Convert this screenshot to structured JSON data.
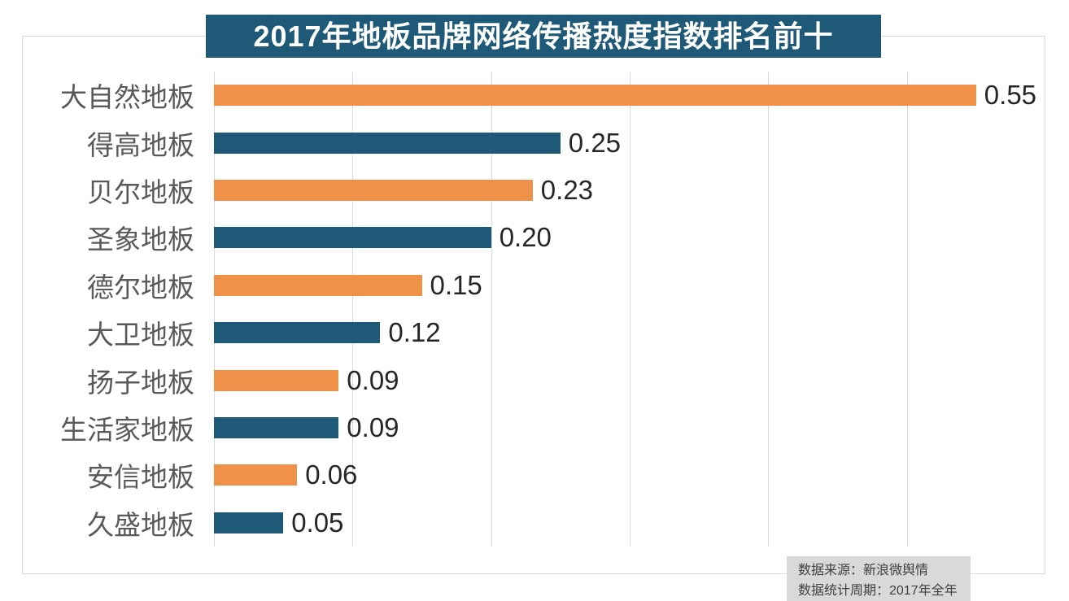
{
  "chart_data": {
    "type": "bar",
    "orientation": "horizontal",
    "title": "2017年地板品牌网络传播热度指数排名前十",
    "categories": [
      "大自然地板",
      "得高地板",
      "贝尔地板",
      "圣象地板",
      "德尔地板",
      "大卫地板",
      "扬子地板",
      "生活家地板",
      "安信地板",
      "久盛地板"
    ],
    "values": [
      0.55,
      0.25,
      0.23,
      0.2,
      0.15,
      0.12,
      0.09,
      0.09,
      0.06,
      0.05
    ],
    "value_labels": [
      "0.55",
      "0.25",
      "0.23",
      "0.20",
      "0.15",
      "0.12",
      "0.09",
      "0.09",
      "0.06",
      "0.05"
    ],
    "xlabel": "",
    "ylabel": "",
    "xlim": [
      0,
      0.6
    ],
    "gridline_interval": 0.1,
    "grid": true,
    "legend": false,
    "bar_color_pattern": "alternating"
  },
  "footer": {
    "source_line": "数据来源：新浪微舆情",
    "period_line": "数据统计周期：2017年全年"
  },
  "colors": {
    "bar_orange": "#F0914A",
    "bar_blue": "#1E5A78",
    "title_bg": "#1E5A78",
    "title_text": "#FFFFFF",
    "gridline": "#D9D9D9",
    "frame_border": "#D9D9D9",
    "category_label": "#595959",
    "value_label": "#262626",
    "footer_bg": "#D9D9D9",
    "footer_text": "#404040",
    "background": "#FFFFFF"
  }
}
